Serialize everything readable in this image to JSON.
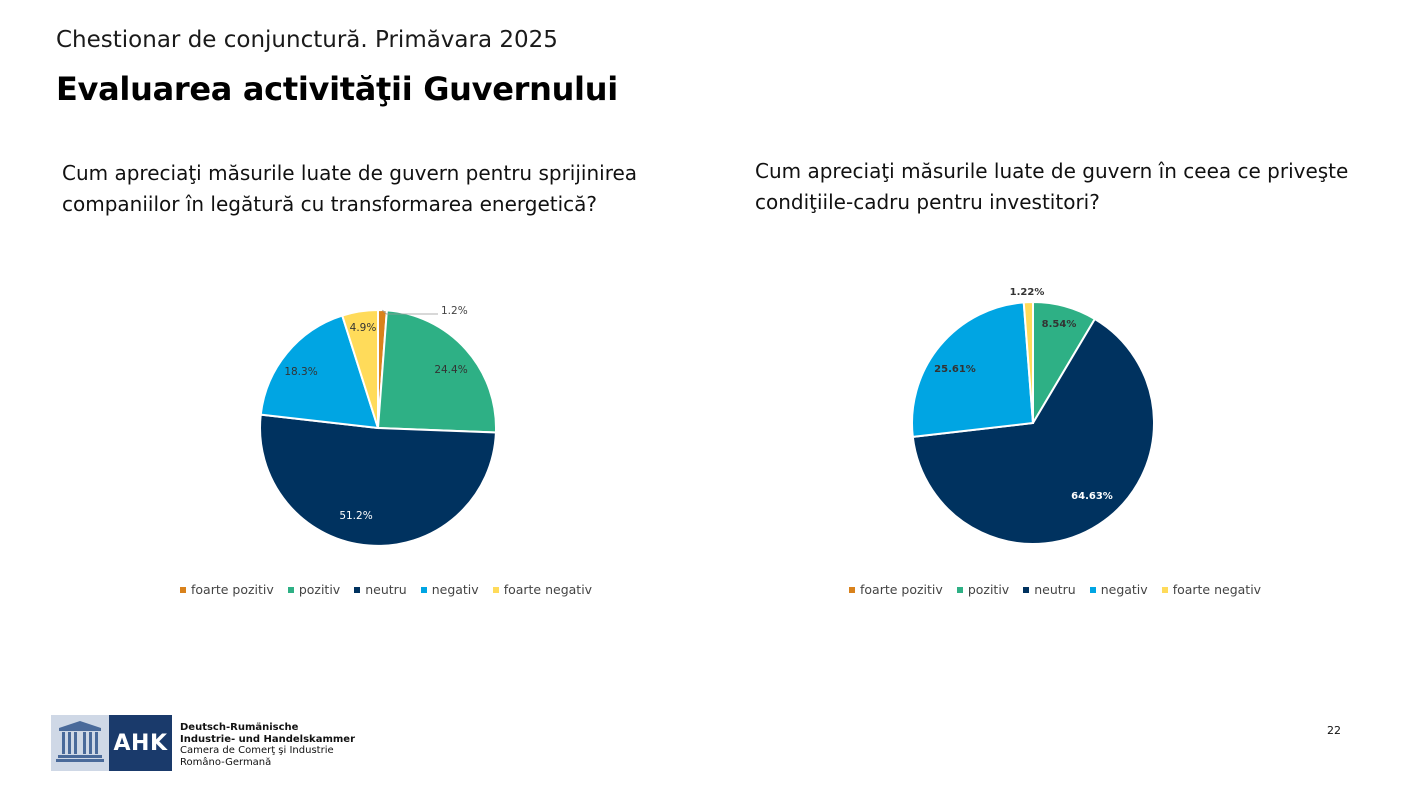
{
  "header": {
    "subtitle": "Chestionar de conjunctură. Primăvara 2025",
    "title": "Evaluarea activităţii Guvernului"
  },
  "colors": {
    "foarte_pozitiv": "#d9821c",
    "pozitiv": "#2eb085",
    "neutru": "#00325f",
    "negativ": "#00a5e3",
    "foarte_negativ": "#ffdb5a"
  },
  "chart_data": [
    {
      "type": "pie",
      "title": "Cum apreciaţi măsurile luate de guvern pentru sprijinirea companiilor în legătură cu transformarea energetică?",
      "categories": [
        "foarte pozitiv",
        "pozitiv",
        "neutru",
        "negativ",
        "foarte negativ"
      ],
      "values": [
        1.2,
        24.4,
        51.2,
        18.3,
        4.9
      ],
      "labels": [
        "1.2%",
        "24.4%",
        "51.2%",
        "18.3%",
        "4.9%"
      ],
      "colors": [
        "#d9821c",
        "#2eb085",
        "#00325f",
        "#00a5e3",
        "#ffdb5a"
      ],
      "legend_position": "bottom"
    },
    {
      "type": "pie",
      "title": "Cum apreciaţi măsurile luate de guvern în ceea ce priveşte condiţiile-cadru pentru investitori?",
      "categories": [
        "foarte pozitiv",
        "pozitiv",
        "neutru",
        "negativ",
        "foarte negativ"
      ],
      "values": [
        0,
        8.54,
        64.63,
        25.61,
        1.22
      ],
      "labels": [
        "",
        "8.54%",
        "64.63%",
        "25.61%",
        "1.22%"
      ],
      "colors": [
        "#d9821c",
        "#2eb085",
        "#00325f",
        "#00a5e3",
        "#ffdb5a"
      ],
      "legend_position": "bottom"
    }
  ],
  "footer": {
    "logo_text": "AHK",
    "org_line1": "Deutsch-Rumänische",
    "org_line2": "Industrie- und Handelskammer",
    "org_line3": "Camera de Comerţ şi Industrie",
    "org_line4": "Româno-Germană",
    "page_number": "22"
  }
}
